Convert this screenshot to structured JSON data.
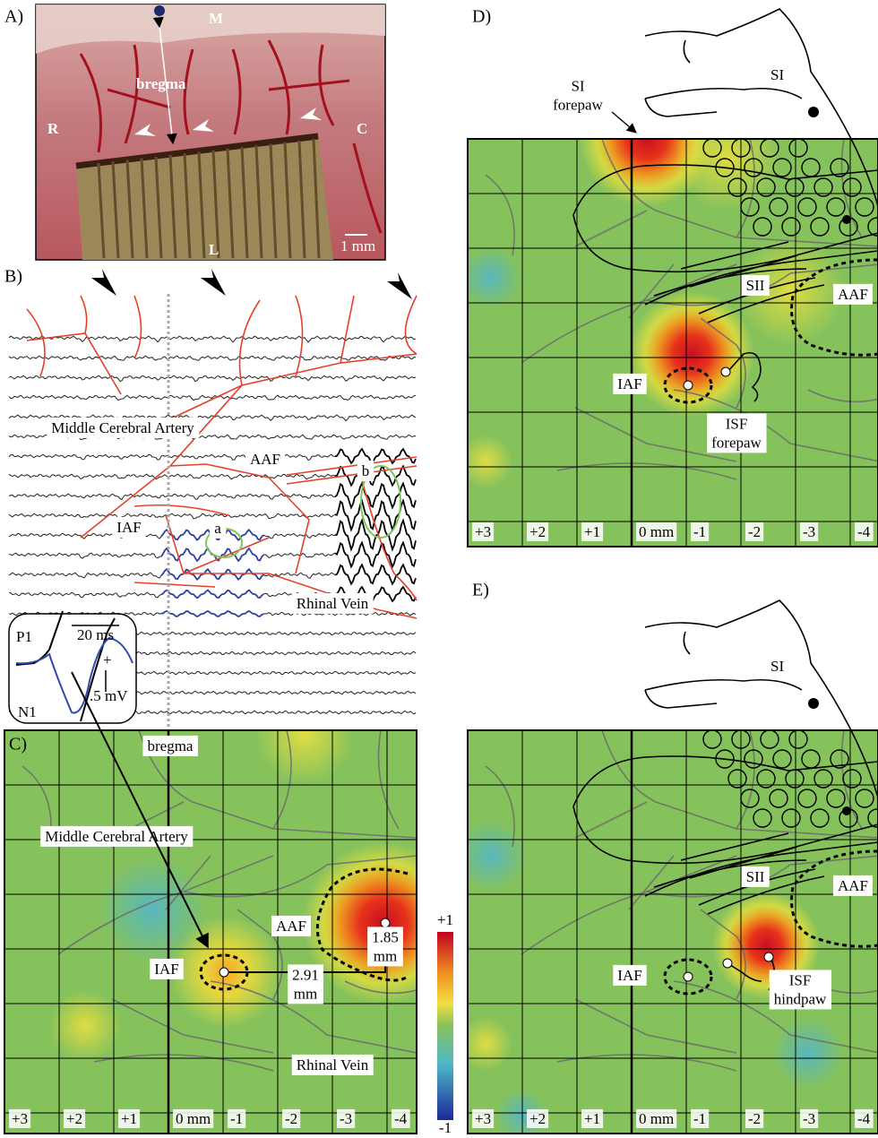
{
  "panel_a": {
    "label": "A)",
    "m": "M",
    "bregma": "bregma",
    "r": "R",
    "c": "C",
    "l": "L",
    "scale": "1 mm"
  },
  "panel_b": {
    "label": "B)",
    "artery": "Middle Cerebral Artery",
    "aaf": "AAF",
    "iaf": "IAF",
    "a": "a",
    "b": "b",
    "vein": "Rhinal Vein",
    "inset": {
      "p1": "P1",
      "n1": "N1",
      "time": "20 ms",
      "plus": "+",
      "volt": ".5 mV"
    }
  },
  "panel_c": {
    "label": "C)",
    "bregma": "bregma",
    "artery": "Middle Cerebral Artery",
    "aaf": "AAF",
    "iaf": "IAF",
    "dist_vertical": [
      "1.85",
      "mm"
    ],
    "dist_horizontal": [
      "2.91",
      "mm"
    ],
    "vein": "Rhinal Vein",
    "axis_labels": [
      "+3",
      "+2",
      "+1",
      "0 mm",
      "-1",
      "-2",
      "-3",
      "-4"
    ]
  },
  "colorbar": {
    "max": "+1",
    "min": "-1"
  },
  "panel_d": {
    "label": "D)",
    "si_forepaw": [
      "SI",
      "forepaw"
    ],
    "si": "SI",
    "sii": "SII",
    "aaf": "AAF",
    "iaf": "IAF",
    "isf": [
      "ISF",
      "forepaw"
    ],
    "axis_labels": [
      "+3",
      "+2",
      "+1",
      "0 mm",
      "-1",
      "-2",
      "-3",
      "-4"
    ]
  },
  "panel_e": {
    "label": "E)",
    "si": "SI",
    "sii": "SII",
    "aaf": "AAF",
    "iaf": "IAF",
    "isf": [
      "ISF",
      "hindpaw"
    ],
    "axis_labels": [
      "+3",
      "+2",
      "+1",
      "0 mm",
      "-1",
      "-2",
      "-3",
      "-4"
    ]
  }
}
